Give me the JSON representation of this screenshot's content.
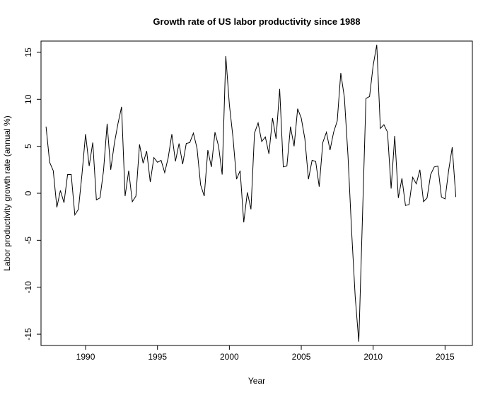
{
  "chart_data": {
    "type": "line",
    "title": "Growth rate of US labor productivity since 1988",
    "xlabel": "Year",
    "ylabel": "Labor productivity growth rate (annual %)",
    "xlim": [
      1986.9,
      2016.9
    ],
    "ylim": [
      -16.2,
      16.2
    ],
    "x_ticks": [
      1990,
      1995,
      2000,
      2005,
      2010,
      2015
    ],
    "y_ticks": [
      -15,
      -10,
      -5,
      0,
      5,
      10,
      15
    ],
    "grid": false,
    "line_color": "#000000",
    "x_start": 1987.25,
    "x_step": 0.25,
    "values": [
      7.1,
      3.3,
      2.4,
      -1.5,
      0.3,
      -1,
      2,
      2,
      -2.3,
      -1.7,
      2,
      6.3,
      2.9,
      5.4,
      -0.7,
      -0.5,
      2.4,
      7.4,
      2.5,
      5.3,
      7.4,
      9.2,
      -0.3,
      2.4,
      -0.9,
      -0.3,
      5.2,
      3.2,
      4.5,
      1.2,
      3.8,
      3.3,
      3.5,
      2.2,
      3.8,
      6.3,
      3.4,
      5.3,
      3.1,
      5.3,
      5.4,
      6.4,
      4.8,
      0.9,
      -0.3,
      4.6,
      2.8,
      6.5,
      5,
      2,
      14.6,
      9.4,
      6,
      1.5,
      2.4,
      -3.1,
      0.1,
      -1.7,
      6.4,
      7.5,
      5.5,
      6,
      4.2,
      8,
      5.8,
      11.1,
      2.8,
      2.9,
      7.1,
      5,
      9,
      8,
      5.8,
      1.5,
      3.5,
      3.4,
      0.7,
      5.4,
      6.5,
      4.6,
      6.5,
      7.7,
      12.8,
      10.2,
      4,
      -4,
      -11,
      -15.8,
      -3,
      10.1,
      10.3,
      13.6,
      15.8,
      6.9,
      7.3,
      6.5,
      0.5,
      6.1,
      -0.5,
      1.6,
      -1.3,
      -1.2,
      1.7,
      1,
      2.5,
      -0.9,
      -0.5,
      2,
      2.8,
      2.9,
      -0.4,
      -0.6,
      2.4,
      4.9,
      -0.4
    ]
  }
}
